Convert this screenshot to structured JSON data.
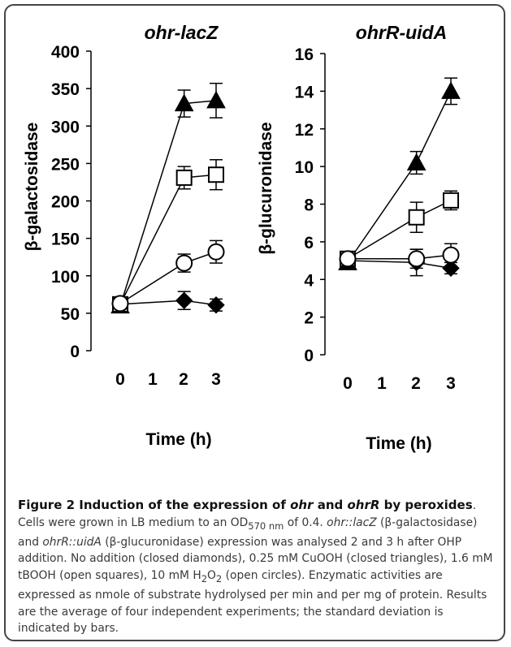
{
  "chart_data": [
    {
      "type": "line",
      "title": "ohr-lacZ",
      "xlabel": "Time (h)",
      "ylabel": "β-galactosidase",
      "x": [
        0,
        2,
        3
      ],
      "xticks": [
        "0",
        "1",
        "2",
        "3"
      ],
      "xlim": [
        0,
        3
      ],
      "ylim": [
        0,
        400
      ],
      "yticks": [
        "0",
        "50",
        "100",
        "150",
        "200",
        "250",
        "300",
        "350",
        "400"
      ],
      "series": [
        {
          "marker": "filled-diamond",
          "values": [
            62,
            67,
            61
          ],
          "errors": [
            6,
            12,
            8
          ]
        },
        {
          "marker": "filled-triangle",
          "values": [
            60,
            330,
            334
          ],
          "errors": [
            6,
            18,
            23
          ]
        },
        {
          "marker": "open-square",
          "values": [
            62,
            231,
            235
          ],
          "errors": [
            6,
            15,
            20
          ]
        },
        {
          "marker": "open-circle",
          "values": [
            63,
            117,
            132
          ],
          "errors": [
            6,
            12,
            15
          ]
        }
      ]
    },
    {
      "type": "line",
      "title": "ohrR-uidA",
      "xlabel": "Time (h)",
      "ylabel": "β-glucuronidase",
      "x": [
        0,
        2,
        3
      ],
      "xticks": [
        "0",
        "1",
        "2",
        "3"
      ],
      "xlim": [
        0,
        3
      ],
      "ylim": [
        0,
        16
      ],
      "yticks": [
        "0",
        "2",
        "4",
        "6",
        "8",
        "10",
        "12",
        "14",
        "16"
      ],
      "series": [
        {
          "marker": "filled-diamond",
          "values": [
            5.0,
            4.9,
            4.6
          ],
          "errors": [
            0.2,
            0.7,
            0.3
          ]
        },
        {
          "marker": "filled-triangle",
          "values": [
            4.9,
            10.2,
            14.0
          ],
          "errors": [
            0.2,
            0.6,
            0.7
          ]
        },
        {
          "marker": "open-square",
          "values": [
            5.1,
            7.3,
            8.2
          ],
          "errors": [
            0.2,
            0.8,
            0.5
          ]
        },
        {
          "marker": "open-circle",
          "values": [
            5.1,
            5.1,
            5.3
          ],
          "errors": [
            0.2,
            0.5,
            0.6
          ]
        }
      ]
    }
  ],
  "caption": {
    "figure_label": "Figure 2",
    "title_part1": "Induction of the expression of ",
    "title_it1": "ohr",
    "title_part2": " and ",
    "title_it2": "ohrR",
    "title_part3": " by peroxides",
    "text1": ". Cells were grown in LB medium to an OD",
    "od_subscript": "570 nm",
    "text2": " of 0.4. ",
    "gene1": "ohr::lacZ",
    "text3": " (β-galactosidase) and ",
    "gene2": "ohrR::uidA",
    "text4": " (β-glucuronidase) expression was analysed 2 and 3 h after OHP addition. No addition (closed diamonds), 0.25 mM CuOOH (closed triangles), 1.6 mM tBOOH (open squares), 10 mM H",
    "h2o2_sub1": "2",
    "text5": "O",
    "h2o2_sub2": "2",
    "text6": " (open circles). Enzymatic activities are expressed as nmole of substrate hydrolysed per min and per mg of protein. Results are the average of four independent experiments; the standard deviation is indicated by bars."
  }
}
